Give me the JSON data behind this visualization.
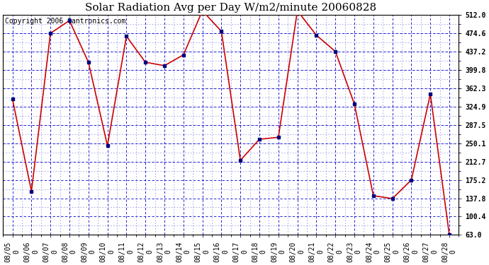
{
  "title": "Solar Radiation Avg per Day W/m2/minute 20060828",
  "copyright": "Copyright 2006 Cantronics.com",
  "dates": [
    "08/05\n0",
    "08/06\n0",
    "08/07\n0",
    "08/08\n0",
    "08/09\n0",
    "08/10\n0",
    "08/11\n0",
    "08/12\n0",
    "08/13\n0",
    "08/14\n0",
    "08/15\n0",
    "08/16\n0",
    "08/17\n0",
    "08/18\n0",
    "08/19\n0",
    "08/20\n0",
    "08/21\n0",
    "08/22\n0",
    "08/23\n0",
    "08/24\n0",
    "08/25\n0",
    "08/26\n0",
    "08/27\n0",
    "08/28\n0"
  ],
  "values": [
    340,
    152,
    474,
    500,
    415,
    245,
    468,
    415,
    408,
    430,
    520,
    478,
    215,
    258,
    262,
    520,
    470,
    437,
    330,
    143,
    137,
    175,
    350,
    63
  ],
  "ylim": [
    63.0,
    512.0
  ],
  "yticks": [
    63.0,
    100.4,
    137.8,
    175.2,
    212.7,
    250.1,
    287.5,
    324.9,
    362.3,
    399.8,
    437.2,
    474.6,
    512.0
  ],
  "ytick_labels": [
    "63.0",
    "100.4",
    "137.8",
    "175.2",
    "212.7",
    "250.1",
    "287.5",
    "324.9",
    "362.3",
    "399.8",
    "437.2",
    "474.6",
    "512.0"
  ],
  "line_color": "#cc0000",
  "marker_color": "#000080",
  "grid_color": "#0000cc",
  "bg_color": "#ffffff",
  "plot_bg_color": "#ffffff",
  "border_color": "#000000",
  "title_fontsize": 11,
  "tick_fontsize": 7,
  "copyright_fontsize": 7
}
